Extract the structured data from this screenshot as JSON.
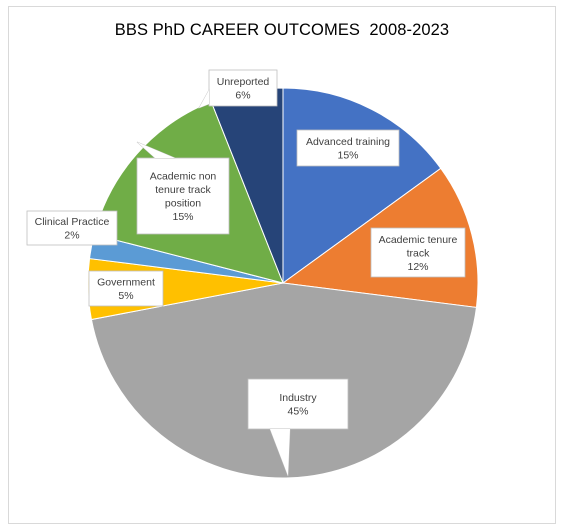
{
  "chart_data": {
    "type": "pie",
    "title": "BBS PhD CAREER OUTCOMES  2008-2023",
    "slices": [
      {
        "key": "advanced",
        "label_lines": [
          "Advanced training"
        ],
        "percent_label": "15%",
        "value": 15,
        "color": "#4472C4"
      },
      {
        "key": "tenure",
        "label_lines": [
          "Academic tenure",
          "track"
        ],
        "percent_label": "12%",
        "value": 12,
        "color": "#ED7D31"
      },
      {
        "key": "industry",
        "label_lines": [
          "Industry"
        ],
        "percent_label": "45%",
        "value": 45,
        "color": "#A5A5A5"
      },
      {
        "key": "government",
        "label_lines": [
          "Government"
        ],
        "percent_label": "5%",
        "value": 5,
        "color": "#FFC000"
      },
      {
        "key": "clinical",
        "label_lines": [
          "Clinical Practice"
        ],
        "percent_label": "2%",
        "value": 2,
        "color": "#5B9BD5"
      },
      {
        "key": "nontenure",
        "label_lines": [
          "Academic non",
          "tenure track",
          "position"
        ],
        "percent_label": "15%",
        "value": 15,
        "color": "#70AD47"
      },
      {
        "key": "unreported",
        "label_lines": [
          "Unreported"
        ],
        "percent_label": "6%",
        "value": 6,
        "color": "#264478"
      }
    ]
  }
}
